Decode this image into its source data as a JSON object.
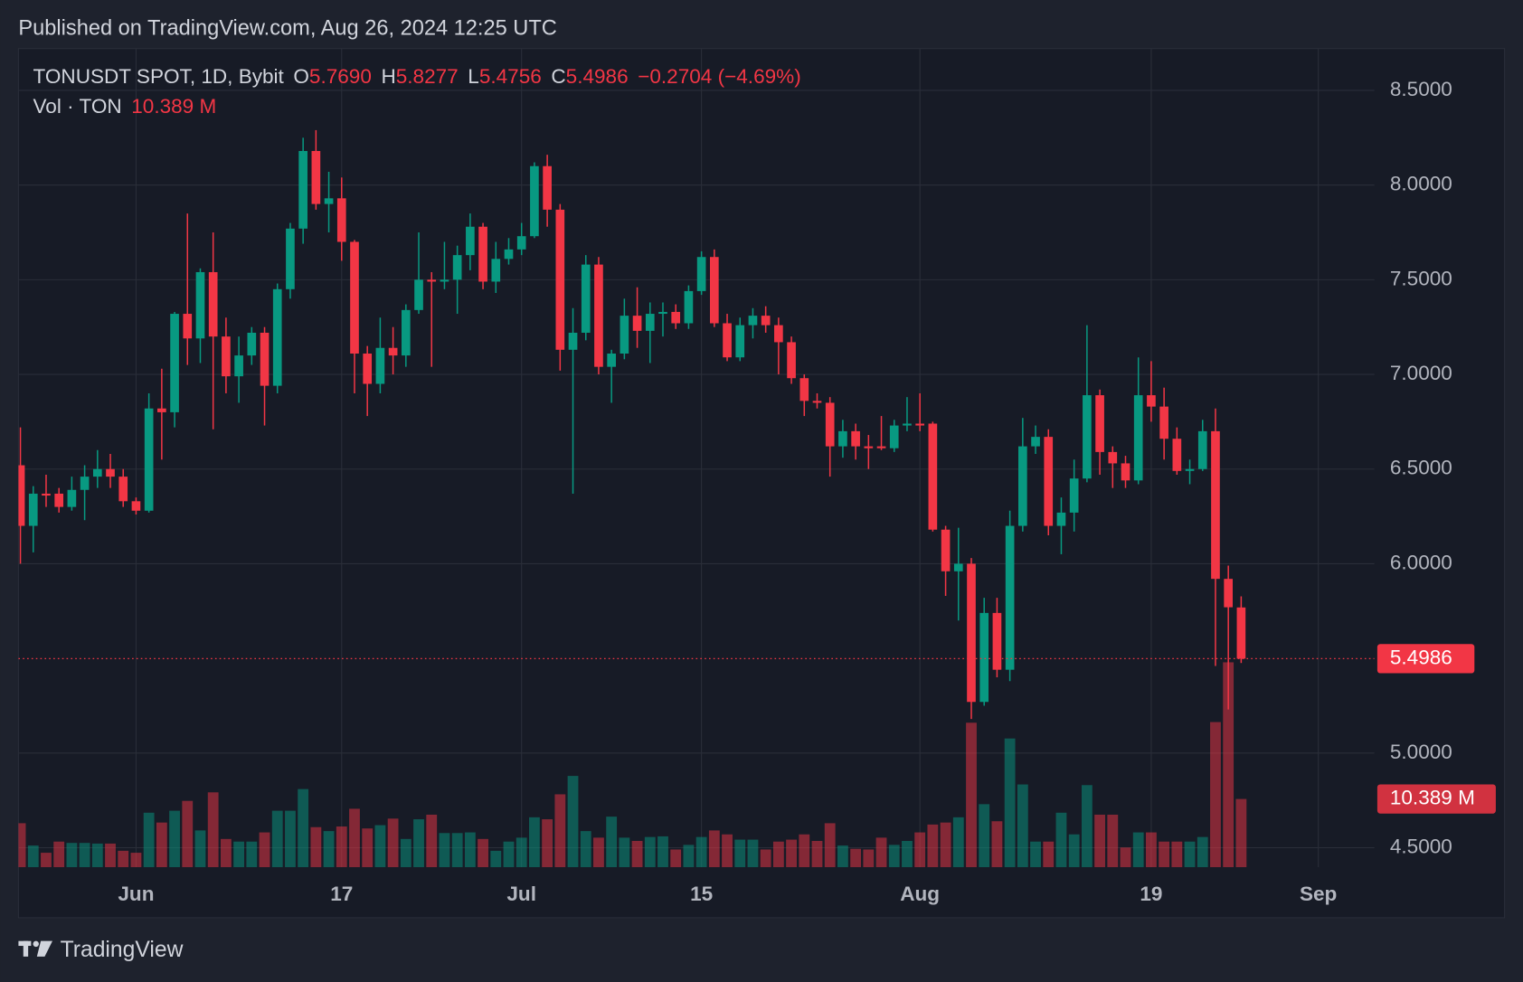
{
  "header": "Published on TradingView.com, Aug 26, 2024 12:25 UTC",
  "brand": "TradingView",
  "chart_data": {
    "type": "candlestick",
    "legend": {
      "symbol": "TONUSDT SPOT, 1D, Bybit",
      "fields": [
        {
          "key": "O",
          "value": "5.7690"
        },
        {
          "key": "H",
          "value": "5.8277"
        },
        {
          "key": "L",
          "value": "5.4756"
        },
        {
          "key": "C",
          "value": "5.4986"
        }
      ],
      "change": "−0.2704 (−4.69%)",
      "volume_name": "Vol · TON",
      "volume_value": "10.389 M"
    },
    "price_axis_label": "5.4986",
    "volume_axis_label": "10.389 M",
    "up_color": "#089981",
    "down_color": "#f23645",
    "volume_up_color": "rgba(8,153,129,0.5)",
    "volume_down_color": "rgba(242,54,69,0.5)",
    "grid": true,
    "x": [
      "2024-05-23",
      "2024-05-24",
      "2024-05-25",
      "2024-05-26",
      "2024-05-27",
      "2024-05-28",
      "2024-05-29",
      "2024-05-30",
      "2024-05-31",
      "2024-06-01",
      "2024-06-02",
      "2024-06-03",
      "2024-06-04",
      "2024-06-05",
      "2024-06-06",
      "2024-06-07",
      "2024-06-08",
      "2024-06-09",
      "2024-06-10",
      "2024-06-11",
      "2024-06-12",
      "2024-06-13",
      "2024-06-14",
      "2024-06-15",
      "2024-06-16",
      "2024-06-17",
      "2024-06-18",
      "2024-06-19",
      "2024-06-20",
      "2024-06-21",
      "2024-06-22",
      "2024-06-23",
      "2024-06-24",
      "2024-06-25",
      "2024-06-26",
      "2024-06-27",
      "2024-06-28",
      "2024-06-29",
      "2024-06-30",
      "2024-07-01",
      "2024-07-02",
      "2024-07-03",
      "2024-07-04",
      "2024-07-05",
      "2024-07-06",
      "2024-07-07",
      "2024-07-08",
      "2024-07-09",
      "2024-07-10",
      "2024-07-11",
      "2024-07-12",
      "2024-07-13",
      "2024-07-14",
      "2024-07-15",
      "2024-07-16",
      "2024-07-17",
      "2024-07-18",
      "2024-07-19",
      "2024-07-20",
      "2024-07-21",
      "2024-07-22",
      "2024-07-23",
      "2024-07-24",
      "2024-07-25",
      "2024-07-26",
      "2024-07-27",
      "2024-07-28",
      "2024-07-29",
      "2024-07-30",
      "2024-07-31",
      "2024-08-01",
      "2024-08-02",
      "2024-08-03",
      "2024-08-04",
      "2024-08-05",
      "2024-08-06",
      "2024-08-07",
      "2024-08-08",
      "2024-08-09",
      "2024-08-10",
      "2024-08-11",
      "2024-08-12",
      "2024-08-13",
      "2024-08-14",
      "2024-08-15",
      "2024-08-16",
      "2024-08-17",
      "2024-08-18",
      "2024-08-19",
      "2024-08-20",
      "2024-08-21",
      "2024-08-22",
      "2024-08-23",
      "2024-08-24",
      "2024-08-25",
      "2024-08-26"
    ],
    "open": [
      6.52,
      6.2,
      6.37,
      6.37,
      6.3,
      6.39,
      6.46,
      6.5,
      6.46,
      6.33,
      6.28,
      6.82,
      6.8,
      7.32,
      7.19,
      7.54,
      7.2,
      6.99,
      7.1,
      7.22,
      6.94,
      7.45,
      7.77,
      8.18,
      7.9,
      7.93,
      7.7,
      7.11,
      6.95,
      7.14,
      7.1,
      7.34,
      7.5,
      7.49,
      7.5,
      7.63,
      7.78,
      7.49,
      7.61,
      7.66,
      7.73,
      8.1,
      7.87,
      7.13,
      7.22,
      7.58,
      7.04,
      7.11,
      7.31,
      7.23,
      7.32,
      7.33,
      7.27,
      7.44,
      7.62,
      7.27,
      7.09,
      7.26,
      7.31,
      7.26,
      7.17,
      6.98,
      6.86,
      6.85,
      6.62,
      6.7,
      6.62,
      6.62,
      6.61,
      6.73,
      6.74,
      6.74,
      6.18,
      5.96,
      6.0,
      5.27,
      5.74,
      5.44,
      6.2,
      6.62,
      6.67,
      6.2,
      6.27,
      6.45,
      6.89,
      6.59,
      6.53,
      6.44,
      6.89,
      6.83,
      6.66,
      6.49,
      6.5,
      6.7,
      5.92,
      5.769
    ],
    "high": [
      6.72,
      6.41,
      6.47,
      6.4,
      6.46,
      6.52,
      6.6,
      6.58,
      6.5,
      6.35,
      6.9,
      7.03,
      7.33,
      7.85,
      7.56,
      7.75,
      7.3,
      7.2,
      7.25,
      7.25,
      7.48,
      7.8,
      8.25,
      8.29,
      8.07,
      8.04,
      7.71,
      7.15,
      7.3,
      7.25,
      7.37,
      7.75,
      7.54,
      7.7,
      7.68,
      7.85,
      7.8,
      7.7,
      7.72,
      7.8,
      8.12,
      8.16,
      7.9,
      7.35,
      7.63,
      7.62,
      7.13,
      7.4,
      7.46,
      7.38,
      7.38,
      7.37,
      7.47,
      7.65,
      7.66,
      7.32,
      7.3,
      7.35,
      7.36,
      7.3,
      7.2,
      7.0,
      6.9,
      6.88,
      6.76,
      6.74,
      6.68,
      6.78,
      6.76,
      6.88,
      6.9,
      6.75,
      6.2,
      6.19,
      6.03,
      5.82,
      5.82,
      6.28,
      6.77,
      6.73,
      6.71,
      6.35,
      6.55,
      7.26,
      6.92,
      6.62,
      6.57,
      7.09,
      7.07,
      6.93,
      6.72,
      6.55,
      6.76,
      6.82,
      5.99,
      5.8277
    ],
    "low": [
      6.0,
      6.06,
      6.3,
      6.27,
      6.28,
      6.23,
      6.4,
      6.4,
      6.3,
      6.26,
      6.27,
      6.55,
      6.72,
      7.05,
      7.06,
      6.71,
      6.9,
      6.85,
      7.05,
      6.73,
      6.9,
      7.4,
      7.69,
      7.87,
      7.75,
      7.6,
      6.9,
      6.78,
      6.9,
      7.0,
      7.04,
      7.32,
      7.04,
      7.45,
      7.32,
      7.55,
      7.45,
      7.43,
      7.58,
      7.63,
      7.72,
      7.78,
      7.02,
      6.37,
      7.18,
      7.0,
      6.85,
      7.08,
      7.14,
      7.06,
      7.2,
      7.24,
      7.24,
      7.42,
      7.25,
      7.07,
      7.07,
      7.19,
      7.22,
      7.0,
      6.95,
      6.78,
      6.82,
      6.46,
      6.56,
      6.55,
      6.5,
      6.6,
      6.59,
      6.7,
      6.7,
      6.17,
      5.83,
      5.7,
      5.18,
      5.25,
      5.4,
      5.38,
      6.17,
      6.58,
      6.15,
      6.05,
      6.17,
      6.43,
      6.47,
      6.4,
      6.4,
      6.42,
      6.75,
      6.55,
      6.47,
      6.42,
      6.49,
      5.46,
      5.23,
      5.4756
    ],
    "close": [
      6.2,
      6.37,
      6.36,
      6.3,
      6.39,
      6.46,
      6.5,
      6.46,
      6.33,
      6.28,
      6.82,
      6.8,
      7.32,
      7.19,
      7.54,
      7.2,
      6.99,
      7.1,
      7.22,
      6.94,
      7.45,
      7.77,
      8.18,
      7.9,
      7.93,
      7.7,
      7.11,
      6.95,
      7.14,
      7.1,
      7.34,
      7.5,
      7.49,
      7.5,
      7.63,
      7.78,
      7.49,
      7.61,
      7.66,
      7.73,
      8.1,
      7.87,
      7.13,
      7.22,
      7.58,
      7.04,
      7.11,
      7.31,
      7.23,
      7.32,
      7.33,
      7.27,
      7.44,
      7.62,
      7.27,
      7.09,
      7.26,
      7.31,
      7.26,
      7.17,
      6.98,
      6.86,
      6.85,
      6.62,
      6.7,
      6.62,
      6.61,
      6.61,
      6.73,
      6.74,
      6.73,
      6.18,
      5.96,
      6.0,
      5.27,
      5.74,
      5.44,
      6.2,
      6.62,
      6.67,
      6.2,
      6.27,
      6.45,
      6.89,
      6.59,
      6.53,
      6.44,
      6.89,
      6.83,
      6.66,
      6.49,
      6.5,
      6.7,
      5.92,
      5.77,
      5.4986
    ],
    "volume": [
      6.7,
      3.3,
      2.2,
      3.9,
      3.7,
      3.7,
      3.6,
      3.6,
      2.5,
      2.2,
      8.3,
      6.8,
      8.6,
      10.1,
      5.6,
      11.4,
      4.3,
      3.9,
      3.9,
      5.3,
      8.6,
      8.6,
      11.9,
      6.1,
      5.5,
      6.2,
      8.9,
      5.9,
      6.4,
      7.4,
      4.3,
      7.3,
      8.0,
      5.2,
      5.2,
      5.3,
      4.3,
      2.5,
      3.9,
      4.5,
      7.6,
      7.3,
      11.1,
      13.9,
      5.5,
      4.5,
      7.7,
      4.5,
      4.0,
      4.6,
      4.7,
      2.7,
      3.4,
      4.6,
      5.6,
      5.0,
      4.2,
      4.2,
      2.7,
      3.9,
      4.2,
      5.0,
      4.0,
      6.7,
      3.3,
      2.8,
      2.7,
      4.5,
      3.4,
      4.0,
      5.3,
      6.5,
      6.8,
      7.6,
      22.0,
      9.6,
      7.0,
      19.6,
      12.6,
      3.9,
      3.9,
      8.3,
      5.0,
      12.5,
      8.0,
      8.0,
      3.0,
      5.3,
      5.3,
      3.9,
      3.9,
      3.9,
      4.6,
      22.1,
      31.2,
      10.389
    ],
    "ylim": [
      4.397,
      8.721
    ],
    "yticks": [
      {
        "value": 4.5,
        "label": "4.5000"
      },
      {
        "value": 5.0,
        "label": "5.0000"
      },
      {
        "value": 6.0,
        "label": "6.0000"
      },
      {
        "value": 6.5,
        "label": "6.5000"
      },
      {
        "value": 7.0,
        "label": "7.0000"
      },
      {
        "value": 7.5,
        "label": "7.5000"
      },
      {
        "value": 8.0,
        "label": "8.0000"
      },
      {
        "value": 8.5,
        "label": "8.5000"
      }
    ],
    "xticks": [
      {
        "value": "2024-06-01",
        "label": "Jun"
      },
      {
        "value": "2024-06-17",
        "label": "17"
      },
      {
        "value": "2024-07-01",
        "label": "Jul"
      },
      {
        "value": "2024-07-15",
        "label": "15"
      },
      {
        "value": "2024-08-01",
        "label": "Aug"
      },
      {
        "value": "2024-08-19",
        "label": "19"
      },
      {
        "value": "2024-09-01",
        "label": "Sep"
      }
    ]
  }
}
